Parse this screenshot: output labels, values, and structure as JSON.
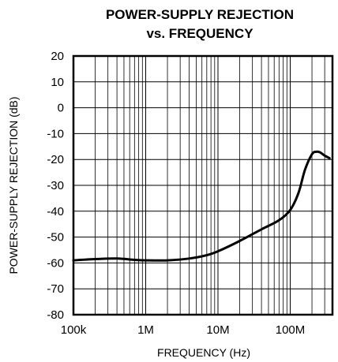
{
  "chart_data": {
    "type": "line",
    "title": "POWER-SUPPLY REJECTION",
    "subtitle": "vs. FREQUENCY",
    "xlabel": "FREQUENCY (Hz)",
    "ylabel": "POWER-SUPPLY REJECTION (dB)",
    "xscale": "log",
    "xlim": [
      100000,
      350000000
    ],
    "ylim": [
      -80,
      20
    ],
    "grid": true,
    "x_ticks": [
      {
        "value": 100000,
        "label": "100k"
      },
      {
        "value": 1000000,
        "label": "1M"
      },
      {
        "value": 10000000,
        "label": "10M"
      },
      {
        "value": 100000000,
        "label": "100M"
      }
    ],
    "y_ticks": [
      {
        "value": 20,
        "label": "20"
      },
      {
        "value": 10,
        "label": "10"
      },
      {
        "value": 0,
        "label": "0"
      },
      {
        "value": -10,
        "label": "-10"
      },
      {
        "value": -20,
        "label": "-20"
      },
      {
        "value": -30,
        "label": "-30"
      },
      {
        "value": -40,
        "label": "-40"
      },
      {
        "value": -50,
        "label": "-50"
      },
      {
        "value": -60,
        "label": "-60"
      },
      {
        "value": -70,
        "label": "-70"
      },
      {
        "value": -80,
        "label": "-80"
      }
    ],
    "series": [
      {
        "x": [
          100000,
          200000,
          400000,
          700000,
          1000000,
          2000000,
          4000000,
          7000000,
          10000000,
          20000000,
          40000000,
          70000000,
          100000000,
          130000000,
          160000000,
          200000000,
          230000000,
          260000000,
          300000000,
          350000000
        ],
        "y": [
          -59,
          -58.5,
          -58.3,
          -58.8,
          -59,
          -59,
          -58.3,
          -57,
          -55.5,
          -51.5,
          -47,
          -43.5,
          -39.5,
          -33,
          -24,
          -18,
          -17,
          -17.3,
          -18.5,
          -19.5
        ]
      }
    ]
  }
}
